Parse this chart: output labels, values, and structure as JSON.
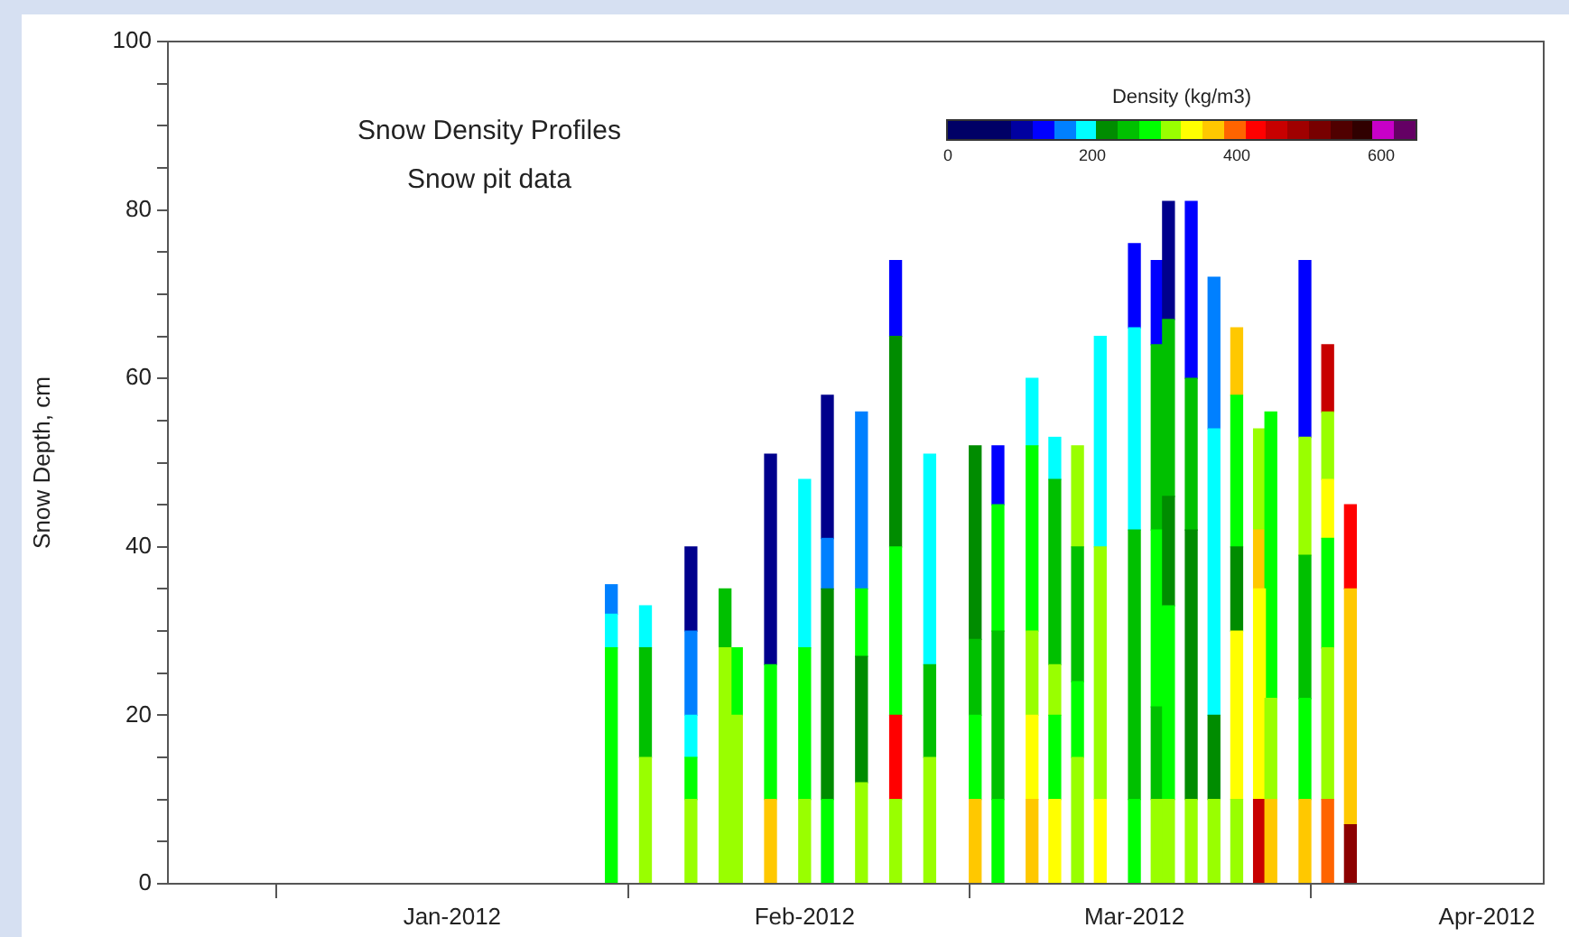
{
  "chart_data": {
    "type": "bar",
    "stacked": true,
    "grid": false,
    "legend": false,
    "title": "Snow Density Profiles",
    "subtitle": "Snow pit data",
    "ylabel": "Snow Depth, cm",
    "clabel": "Density (kg/m3)",
    "annotations": [
      "0",
      "200",
      "400",
      "600"
    ],
    "xlim": [
      "2011-12-07",
      "2012-04-06"
    ],
    "xticks": [
      {
        "value": "2012-01-01",
        "label": "Jan-2012"
      },
      {
        "value": "2012-02-01",
        "label": "Feb-2012"
      },
      {
        "value": "2012-03-01",
        "label": "Mar-2012"
      },
      {
        "value": "2012-04-01",
        "label": "Apr-2012"
      }
    ],
    "ylim": [
      0,
      100
    ],
    "yticks": [
      0,
      {
        "value": 5,
        "label": null
      },
      {
        "value": 10,
        "label": null
      },
      {
        "value": 15,
        "label": null
      },
      20,
      {
        "value": 25,
        "label": null
      },
      {
        "value": 30,
        "label": null
      },
      {
        "value": 35,
        "label": null
      },
      40,
      {
        "value": 45,
        "label": null
      },
      {
        "value": 50,
        "label": null
      },
      {
        "value": 55,
        "label": null
      },
      60,
      {
        "value": 65,
        "label": null
      },
      {
        "value": 70,
        "label": null
      },
      {
        "value": 75,
        "label": null
      },
      80,
      {
        "value": 85,
        "label": null
      },
      {
        "value": 90,
        "label": null
      },
      {
        "value": 95,
        "label": null
      },
      100
    ],
    "x": [
      "2012-01-15",
      "2012-01-18",
      "2012-01-22",
      "2012-01-25",
      "2012-01-26",
      "2012-01-29",
      "2012-02-01",
      "2012-02-03",
      "2012-02-06",
      "2012-02-09",
      "2012-02-12",
      "2012-02-16",
      "2012-02-18",
      "2012-02-21",
      "2012-02-23",
      "2012-02-25",
      "2012-02-27",
      "2012-03-01",
      "2012-03-03",
      "2012-03-04",
      "2012-03-06",
      "2012-03-08",
      "2012-03-10",
      "2012-03-12",
      "2012-03-13",
      "2012-03-16",
      "2012-03-18",
      "2012-03-20"
    ],
    "series": [
      {
        "values": [
          28,
          15,
          10,
          28,
          20,
          10,
          10,
          10,
          12,
          10,
          15,
          10,
          10,
          10,
          10,
          15,
          10,
          10,
          10,
          10,
          10,
          10,
          10,
          10,
          10,
          10,
          10,
          7
        ],
        "colors": [
          "#00ff00",
          "#99ff00",
          "#99ff00",
          "#99ff00",
          "#99ff00",
          "#ffc800",
          "#99ff00",
          "#00ff00",
          "#99ff00",
          "#99ff00",
          "#99ff00",
          "#ffc800",
          "#00ff00",
          "#ffc800",
          "#ffff00",
          "#99ff00",
          "#ffff00",
          "#00ff00",
          "#99ff00",
          "#99ff00",
          "#99ff00",
          "#99ff00",
          "#99ff00",
          "#c80000",
          "#ffc800",
          "#ffc800",
          "#ff6400",
          "#8c0000"
        ]
      },
      {
        "values": [
          4,
          13,
          5,
          7,
          8,
          16,
          18,
          25,
          15,
          10,
          11,
          10,
          20,
          10,
          10,
          9,
          30,
          32,
          11,
          23,
          32,
          10,
          20,
          25,
          12,
          12,
          18,
          28
        ],
        "colors": [
          "#00ffff",
          "#00c000",
          "#00ff00",
          "#00c000",
          "#00ff00",
          "#00ff00",
          "#00ff00",
          "#008c00",
          "#008c00",
          "#ff0000",
          "#00c000",
          "#00ff00",
          "#00c000",
          "#ffff00",
          "#00ff00",
          "#00ff00",
          "#99ff00",
          "#00c000",
          "#00c000",
          "#00ff00",
          "#008c00",
          "#008c00",
          "#ffff00",
          "#ffff00",
          "#99ff00",
          "#00ff00",
          "#99ff00",
          "#ffc800"
        ]
      },
      {
        "values": [
          3.5,
          5,
          5,
          null,
          null,
          25,
          20,
          6,
          8,
          20,
          25,
          9,
          15,
          10,
          6,
          16,
          25,
          24,
          21,
          13,
          18,
          34,
          10,
          7,
          34,
          17,
          13,
          10
        ],
        "colors": [
          "#0080ff",
          "#00ffff",
          "#00ffff",
          null,
          null,
          "#00008c",
          "#00ffff",
          "#0080ff",
          "#00ff00",
          "#00ff00",
          "#00ffff",
          "#00c000",
          "#00ff00",
          "#99ff00",
          "#99ff00",
          "#00c000",
          "#00ffff",
          "#00ffff",
          "#00ff00",
          "#008c00",
          "#00c000",
          "#00ffff",
          "#008c00",
          "#ffc800",
          "#00ff00",
          "#00c000",
          "#00ff00",
          "#ff0000"
        ]
      },
      {
        "values": [
          null,
          null,
          10,
          null,
          null,
          null,
          null,
          17,
          21,
          25,
          null,
          23,
          7,
          22,
          22,
          12,
          null,
          10,
          22,
          21,
          21,
          18,
          18,
          12,
          null,
          14,
          7,
          null
        ],
        "colors": [
          null,
          null,
          "#0080ff",
          null,
          null,
          null,
          null,
          "#00008c",
          "#0080ff",
          "#008c00",
          null,
          "#008c00",
          "#0000ff",
          "#00ff00",
          "#00c000",
          "#99ff00",
          null,
          "#0000ff",
          "#00c000",
          "#00c000",
          "#0000ff",
          "#0080ff",
          "#00ff00",
          "#99ff00",
          null,
          "#99ff00",
          "#ffff00",
          null
        ]
      },
      {
        "values": [
          null,
          null,
          10,
          null,
          null,
          null,
          null,
          null,
          null,
          9,
          null,
          null,
          null,
          8,
          5,
          null,
          null,
          null,
          10,
          14,
          null,
          null,
          8,
          null,
          null,
          21,
          8,
          null
        ],
        "colors": [
          null,
          null,
          "#00008c",
          null,
          null,
          null,
          null,
          null,
          null,
          "#0000ff",
          null,
          null,
          null,
          "#00ffff",
          "#00ffff",
          null,
          null,
          null,
          "#0000ff",
          "#00008c",
          null,
          null,
          "#ffc800",
          null,
          null,
          "#0000ff",
          "#99ff00",
          null
        ]
      },
      {
        "values": [
          null,
          null,
          null,
          null,
          null,
          null,
          null,
          null,
          null,
          null,
          null,
          null,
          null,
          null,
          null,
          null,
          null,
          null,
          null,
          null,
          null,
          null,
          null,
          null,
          null,
          null,
          8,
          null
        ],
        "colors": [
          null,
          null,
          null,
          null,
          null,
          null,
          null,
          null,
          null,
          null,
          null,
          null,
          null,
          null,
          null,
          null,
          null,
          null,
          null,
          null,
          null,
          null,
          null,
          null,
          null,
          null,
          "#c80000",
          null
        ]
      }
    ]
  }
}
